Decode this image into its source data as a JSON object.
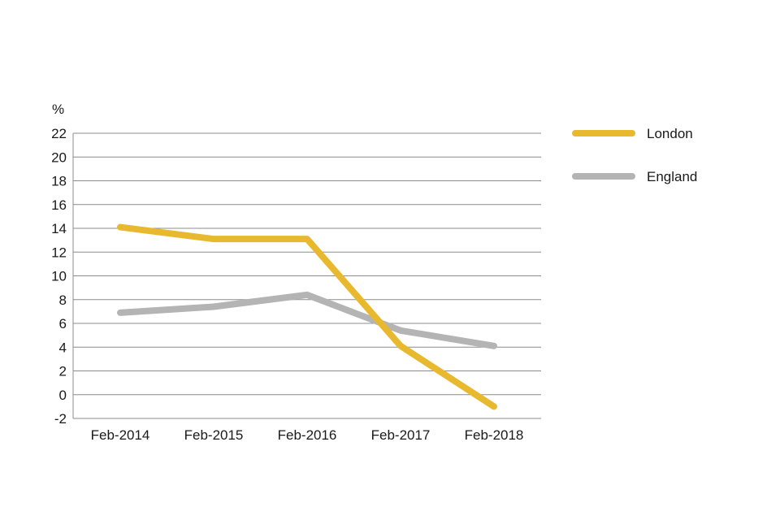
{
  "chart_data": {
    "type": "line",
    "title": "",
    "xlabel": "",
    "ylabel": "%",
    "categories": [
      "Feb-2014",
      "Feb-2015",
      "Feb-2016",
      "Feb-2017",
      "Feb-2018"
    ],
    "ylim": [
      -2,
      22
    ],
    "yticks": [
      -2,
      0,
      2,
      4,
      6,
      8,
      10,
      12,
      14,
      16,
      18,
      20,
      22
    ],
    "grid": true,
    "legend_position": "right",
    "series": [
      {
        "name": "London",
        "color": "#E8B92F",
        "values": [
          14.1,
          13.1,
          13.1,
          4.1,
          -1.0
        ]
      },
      {
        "name": "England",
        "color": "#B4B4B4",
        "values": [
          6.9,
          7.4,
          8.4,
          5.4,
          4.1
        ]
      }
    ]
  }
}
